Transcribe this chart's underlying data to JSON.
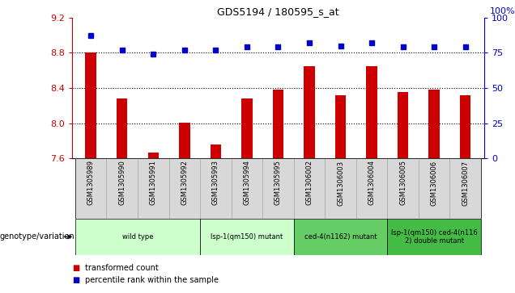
{
  "title": "GDS5194 / 180595_s_at",
  "samples": [
    "GSM1305989",
    "GSM1305990",
    "GSM1305991",
    "GSM1305992",
    "GSM1305993",
    "GSM1305994",
    "GSM1305995",
    "GSM1306002",
    "GSM1306003",
    "GSM1306004",
    "GSM1306005",
    "GSM1306006",
    "GSM1306007"
  ],
  "bar_values": [
    8.8,
    8.28,
    7.67,
    8.01,
    7.76,
    8.28,
    8.38,
    8.65,
    8.32,
    8.65,
    8.35,
    8.38,
    8.32
  ],
  "percentile_values": [
    87,
    77,
    74,
    77,
    77,
    79,
    79,
    82,
    80,
    82,
    79,
    79,
    79
  ],
  "ylim_left": [
    7.6,
    9.2
  ],
  "ylim_right": [
    0,
    100
  ],
  "yticks_left": [
    7.6,
    8.0,
    8.4,
    8.8,
    9.2
  ],
  "yticks_right": [
    0,
    25,
    50,
    75,
    100
  ],
  "bar_color": "#cc0000",
  "dot_color": "#0000cc",
  "hline_values": [
    8.8,
    8.4,
    8.0
  ],
  "groups": [
    {
      "label": "wild type",
      "start": 0,
      "end": 3,
      "color": "#ccffcc"
    },
    {
      "label": "lsp-1(qm150) mutant",
      "start": 4,
      "end": 6,
      "color": "#ccffcc"
    },
    {
      "label": "ced-4(n1162) mutant",
      "start": 7,
      "end": 9,
      "color": "#66cc66"
    },
    {
      "label": "lsp-1(qm150) ced-4(n116\n2) double mutant",
      "start": 10,
      "end": 12,
      "color": "#44bb44"
    }
  ],
  "legend_transformed": "transformed count",
  "legend_percentile": "percentile rank within the sample",
  "genotype_label": "genotype/variation",
  "cell_bg_color": "#d8d8d8",
  "cell_border_color": "#aaaaaa"
}
